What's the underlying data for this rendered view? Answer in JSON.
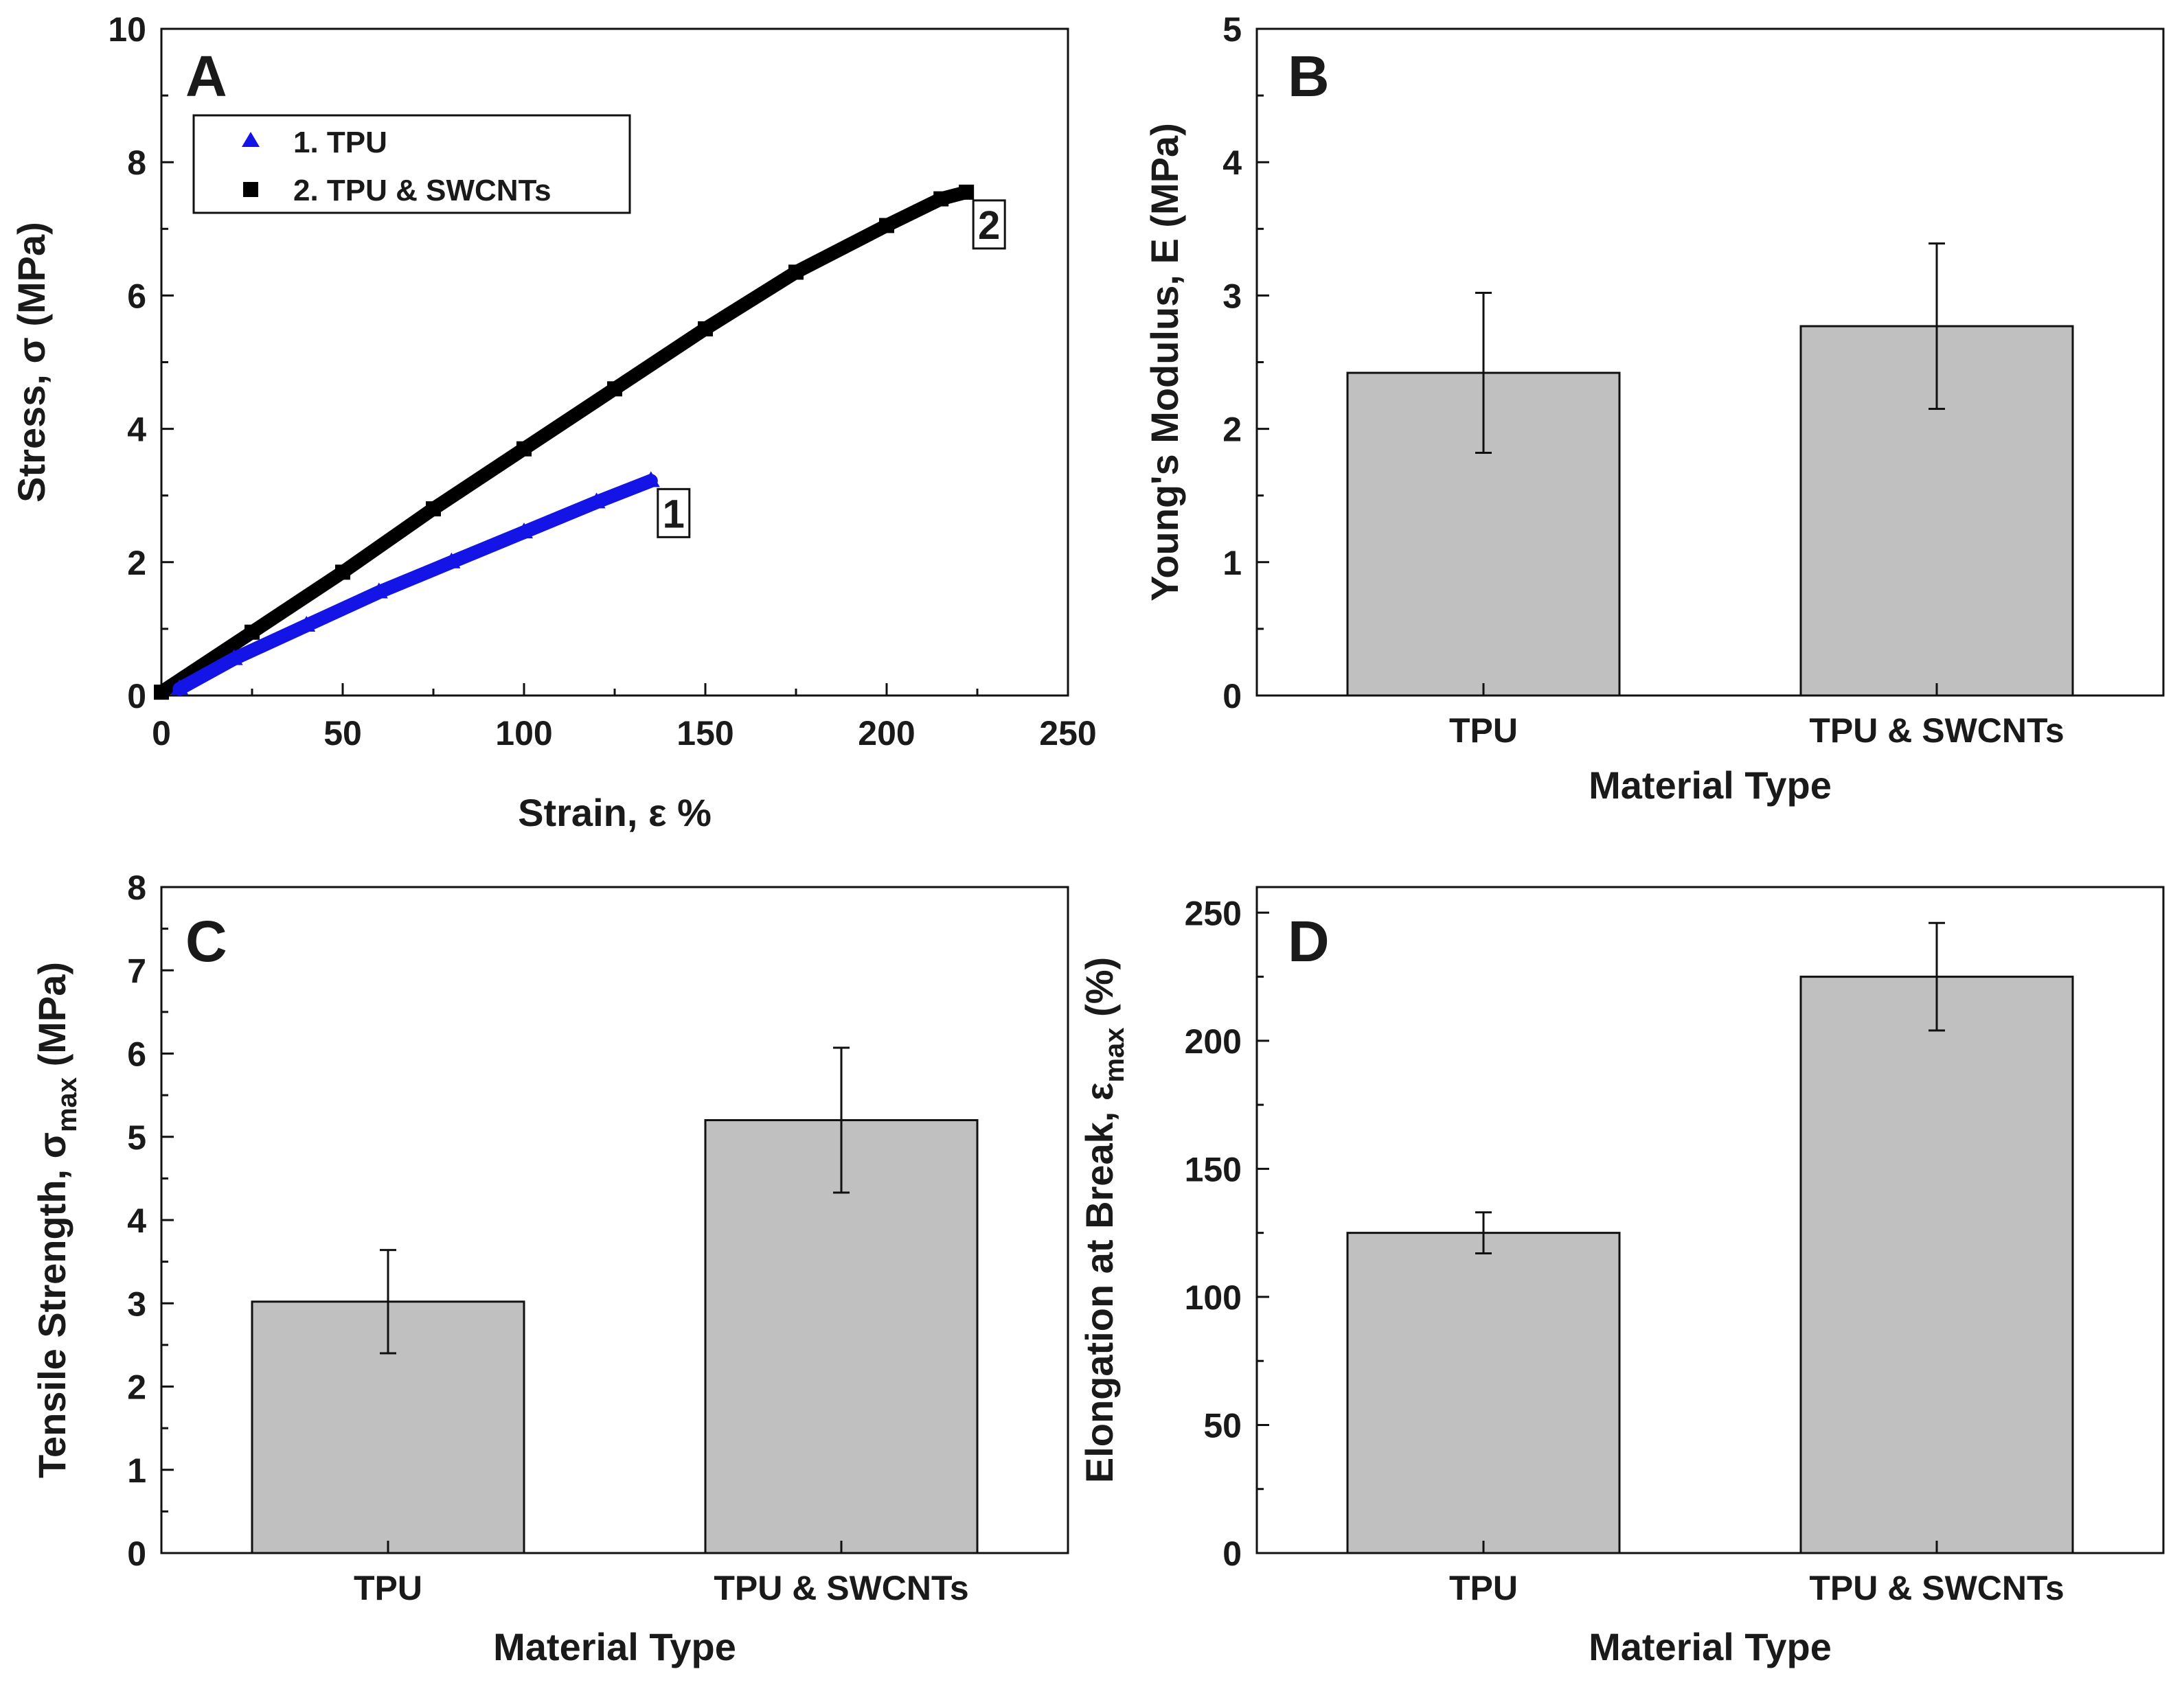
{
  "chart_data": [
    {
      "panel": "A",
      "type": "line",
      "xlabel": "Strain, ε %",
      "ylabel": "Stress, σ (MPa)",
      "xlim": [
        0,
        250
      ],
      "ylim": [
        0,
        10
      ],
      "xticks": [
        0,
        50,
        100,
        150,
        200,
        250
      ],
      "yticks": [
        0,
        2,
        4,
        6,
        8,
        10
      ],
      "legend_position": "top-left",
      "series": [
        {
          "name": "1. TPU",
          "marker": "triangle",
          "color": "#1414e6",
          "label": "1",
          "x": [
            5,
            20,
            40,
            60,
            80,
            100,
            120,
            135
          ],
          "y": [
            0.1,
            0.55,
            1.05,
            1.55,
            2.0,
            2.45,
            2.9,
            3.22
          ]
        },
        {
          "name": "2. TPU & SWCNTs",
          "marker": "square",
          "color": "#000000",
          "label": "2",
          "x": [
            0,
            25,
            50,
            75,
            100,
            125,
            150,
            175,
            200,
            215,
            222
          ],
          "y": [
            0.05,
            0.95,
            1.85,
            2.8,
            3.7,
            4.6,
            5.5,
            6.35,
            7.05,
            7.45,
            7.55
          ]
        }
      ]
    },
    {
      "panel": "B",
      "type": "bar",
      "categories": [
        "TPU",
        "TPU & SWCNTs"
      ],
      "values": [
        2.42,
        2.77
      ],
      "errors": [
        0.6,
        0.62
      ],
      "xlabel": "Material Type",
      "ylabel": "Young's Modulus, E (MPa)",
      "ylim": [
        0,
        5
      ],
      "yticks": [
        0,
        1,
        2,
        3,
        4,
        5
      ]
    },
    {
      "panel": "C",
      "type": "bar",
      "categories": [
        "TPU",
        "TPU & SWCNTs"
      ],
      "values": [
        3.02,
        5.2
      ],
      "errors": [
        0.62,
        0.87
      ],
      "xlabel": "Material Type",
      "ylabel": "Tensile Strength, σ",
      "ylabel_sub": "max",
      "ylabel_suffix": " (MPa)",
      "ylim": [
        0,
        8
      ],
      "yticks": [
        0,
        1,
        2,
        3,
        4,
        5,
        6,
        7,
        8
      ]
    },
    {
      "panel": "D",
      "type": "bar",
      "categories": [
        "TPU",
        "TPU & SWCNTs"
      ],
      "values": [
        125,
        225
      ],
      "errors": [
        8,
        21
      ],
      "xlabel": "Material Type",
      "ylabel": "Elongation at Break, ε",
      "ylabel_sub": "max",
      "ylabel_suffix": " (%)",
      "ylim": [
        0,
        260
      ],
      "yticks": [
        0,
        50,
        100,
        150,
        200,
        250
      ]
    }
  ]
}
